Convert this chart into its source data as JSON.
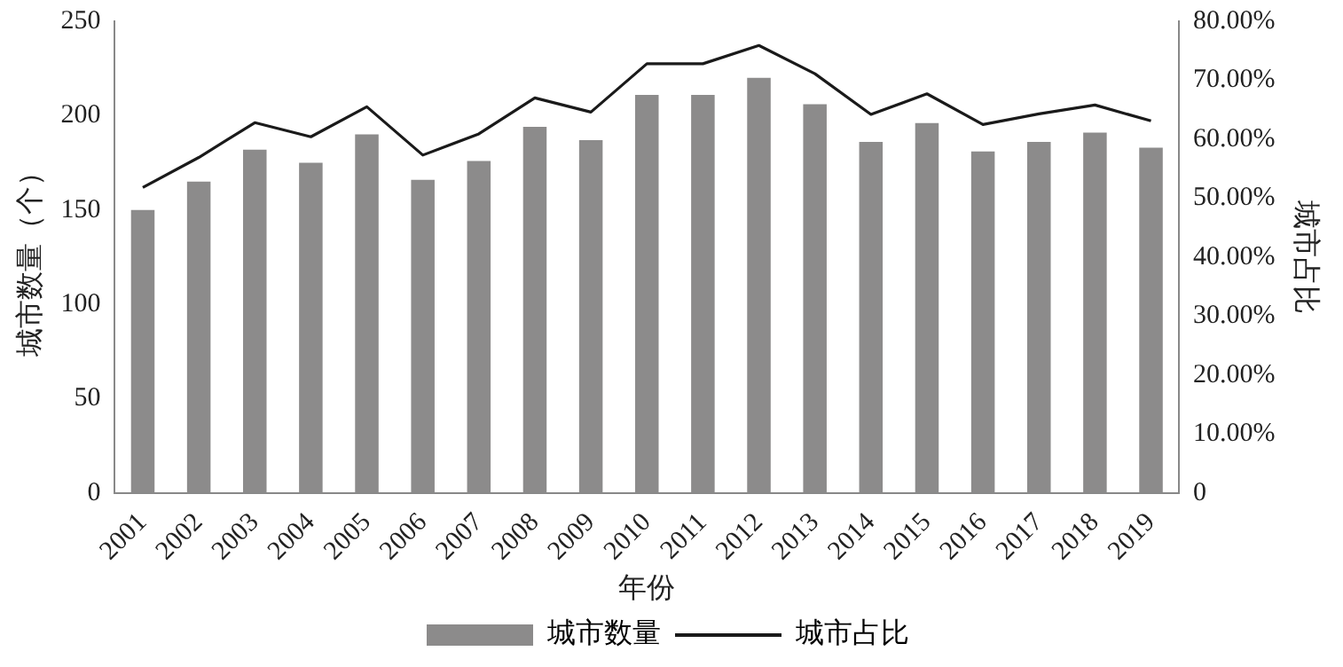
{
  "chart_data": {
    "type": "bar",
    "xlabel": "年份",
    "ylabel": "城市数量（个）",
    "y2label": "城市占比",
    "categories": [
      "2001",
      "2002",
      "2003",
      "2004",
      "2005",
      "2006",
      "2007",
      "2008",
      "2009",
      "2010",
      "2011",
      "2012",
      "2013",
      "2014",
      "2015",
      "2016",
      "2017",
      "2018",
      "2019"
    ],
    "series": [
      {
        "name": "城市数量",
        "color": "#8c8b8b",
        "values": [
          150,
          165,
          182,
          175,
          190,
          166,
          176,
          194,
          187,
          211,
          211,
          220,
          206,
          186,
          196,
          181,
          186,
          191,
          183
        ]
      },
      {
        "name": "城市占比",
        "type": "line",
        "axis": "y2",
        "color": "#1a1a1a",
        "values": [
          51.8,
          56.9,
          62.8,
          60.4,
          65.5,
          57.3,
          60.9,
          67.0,
          64.6,
          72.8,
          72.8,
          75.9,
          71.1,
          64.2,
          67.7,
          62.5,
          64.3,
          65.8,
          63.1
        ]
      }
    ],
    "ylim": [
      0,
      250
    ],
    "yticks": [
      0,
      50,
      100,
      150,
      200,
      250
    ],
    "y2lim": [
      0,
      80
    ],
    "y2ticks": [
      {
        "value": 0,
        "label": "0"
      },
      {
        "value": 10,
        "label": "10.00%"
      },
      {
        "value": 20,
        "label": "20.00%"
      },
      {
        "value": 30,
        "label": "30.00%"
      },
      {
        "value": 40,
        "label": "40.00%"
      },
      {
        "value": 50,
        "label": "50.00%"
      },
      {
        "value": 60,
        "label": "60.00%"
      },
      {
        "value": 70,
        "label": "70.00%"
      },
      {
        "value": 80,
        "label": "80.00%"
      }
    ],
    "grid": false,
    "legend": "bottom",
    "marker": "none",
    "line_style": "solid"
  }
}
